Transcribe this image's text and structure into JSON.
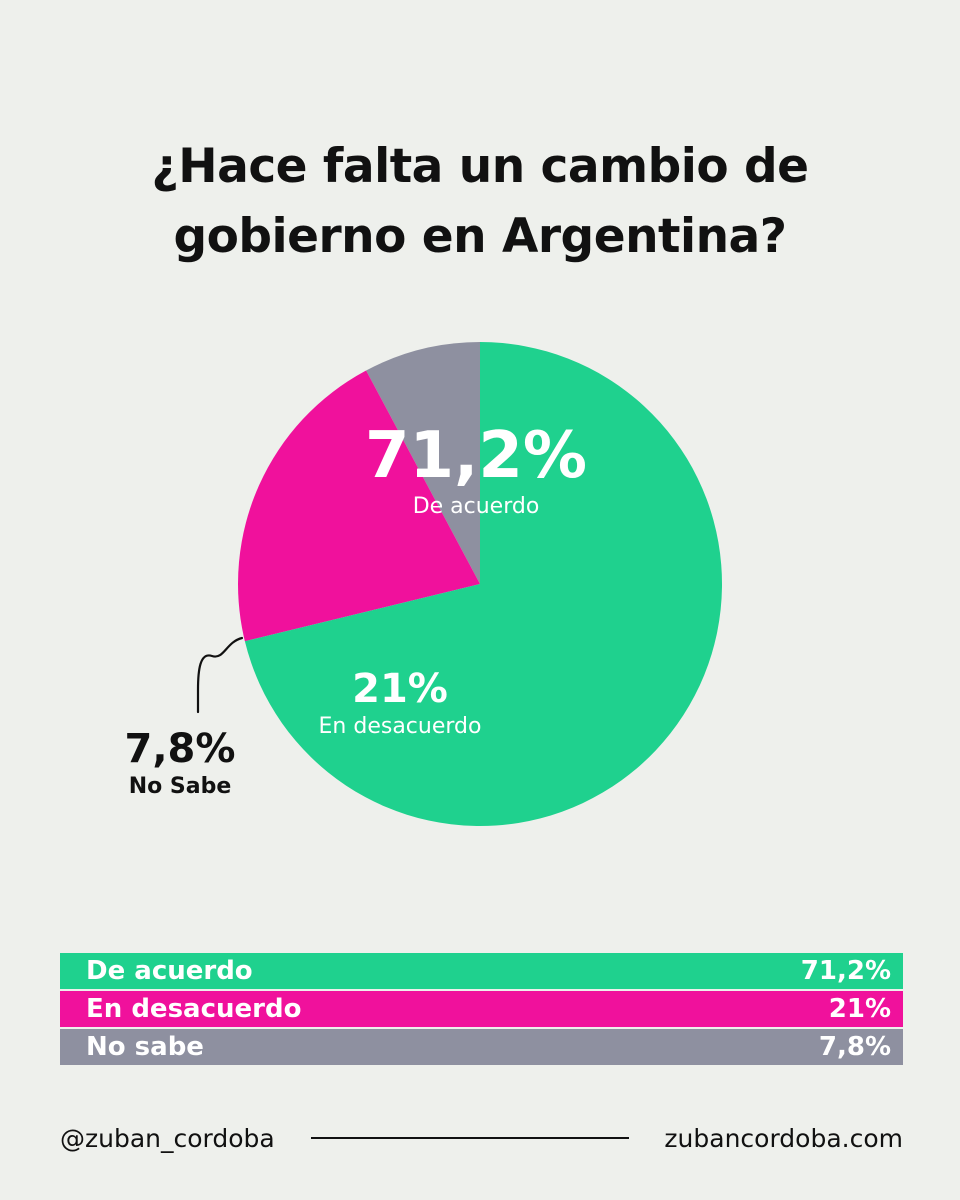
{
  "chart_data": {
    "type": "pie",
    "title_lines": [
      "¿Hace falta un cambio de",
      "gobierno en Argentina?"
    ],
    "slices": [
      {
        "label": "De acuerdo",
        "value": 71.2,
        "display": "71,2%",
        "color": "#1fd18e"
      },
      {
        "label": "En desacuerdo",
        "value": 21,
        "display": "21%",
        "color": "#f0119c"
      },
      {
        "label": "No Sabe",
        "value": 7.8,
        "display": "7,8%",
        "color": "#8e90a0"
      }
    ]
  },
  "legend": [
    {
      "label": "De acuerdo",
      "value": "71,2%",
      "color": "#1fd18e"
    },
    {
      "label": "En desacuerdo",
      "value": "21%",
      "color": "#f0119c"
    },
    {
      "label": "No sabe",
      "value": "7,8%",
      "color": "#8e90a0"
    }
  ],
  "footer": {
    "handle": "@zuban_cordoba",
    "website": "zubancordoba.com"
  },
  "colors": {
    "background": "#eef0ec",
    "text": "#111111"
  }
}
